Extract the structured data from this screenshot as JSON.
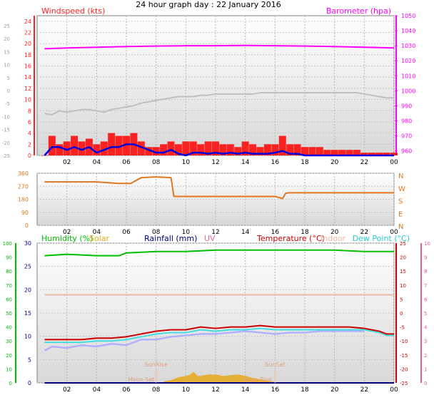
{
  "title": "24 hour graph day : 22 January 2016",
  "colors": {
    "wind": "#ff0000",
    "wind_avg": "#0000dd",
    "gust_trace": "#c0c0c0",
    "baro": "#ff00ff",
    "direction": "#e07820",
    "humidity": "#00c000",
    "solar": "#e6a817",
    "rain": "#000080",
    "uv": "#e06080",
    "temperature": "#cc0000",
    "indoor": "#f0b8a8",
    "dewpoint": "#44dddd",
    "apparent": "#b0b0ff",
    "axis_left": "#ff2020",
    "axis_right": "#ff00ff"
  },
  "chart_data": [
    {
      "type": "line",
      "panel": "wind",
      "title": "",
      "x_ticks": [
        "02",
        "04",
        "06",
        "08",
        "10",
        "12",
        "14",
        "16",
        "18",
        "20",
        "22",
        "00"
      ],
      "x_range_hours": [
        0,
        24
      ],
      "legend": {
        "left": "Windspeed (kts)",
        "right": "Barometer (hpa)"
      },
      "axis_outer_ticks": [
        "25",
        "20",
        "15",
        "10",
        "5",
        "0",
        "-5",
        "-10",
        "-15",
        "-20",
        "-25"
      ],
      "y_left": {
        "label": "Windspeed (kts)",
        "range": [
          0,
          25
        ],
        "ticks": [
          0,
          2,
          4,
          6,
          8,
          10,
          12,
          14,
          16,
          18,
          20,
          22,
          24
        ]
      },
      "y_right": {
        "label": "Barometer (hpa)",
        "range": [
          957,
          1050
        ],
        "ticks": [
          960,
          970,
          980,
          990,
          1000,
          1010,
          1020,
          1030,
          1040,
          1050
        ]
      },
      "series": [
        {
          "name": "Windspeed (kts)",
          "axis": "left",
          "style": "gust",
          "x": [
            0.5,
            1,
            1.5,
            2,
            2.5,
            3,
            3.5,
            4,
            4.5,
            5,
            5.5,
            6,
            6.5,
            7,
            7.5,
            8,
            8.5,
            9,
            9.5,
            10,
            10.5,
            11,
            11.5,
            12,
            12.5,
            13,
            13.5,
            14,
            14.5,
            15,
            15.5,
            16,
            16.5,
            17,
            17.5,
            18,
            18.5,
            19,
            19.5,
            20,
            20.5,
            21,
            21.5,
            22,
            22.5,
            23,
            23.5,
            24
          ],
          "y": [
            0,
            3.5,
            2,
            2.5,
            3.5,
            2.5,
            3,
            2,
            2.5,
            4,
            3.5,
            3.5,
            4,
            2.5,
            1.5,
            1.5,
            2,
            2.5,
            2,
            2.5,
            2.5,
            2,
            2.5,
            2.5,
            2,
            2,
            1.5,
            2.5,
            2,
            1.5,
            2,
            2,
            3.5,
            2,
            2,
            1.5,
            1.5,
            1.5,
            1,
            1,
            1,
            1,
            1,
            0.5,
            0.5,
            0.5,
            0.5,
            0.5
          ]
        },
        {
          "name": "Average speed",
          "axis": "left",
          "style": "line",
          "x": [
            0.5,
            1,
            1.5,
            2,
            2.5,
            3,
            3.5,
            4,
            4.5,
            5,
            5.5,
            6,
            6.5,
            7,
            7.5,
            8,
            8.5,
            9,
            9.5,
            10,
            10.5,
            11,
            11.5,
            12,
            12.5,
            13,
            13.5,
            14,
            14.5,
            15,
            15.5,
            16,
            16.5,
            17,
            17.5,
            18,
            18.5,
            19,
            19.5,
            20,
            20.5,
            21,
            21.5,
            22,
            22.5,
            23,
            23.5,
            24
          ],
          "y": [
            0,
            1.5,
            1.5,
            1,
            1.5,
            1,
            1.5,
            0.5,
            1,
            1.5,
            1.5,
            2,
            2,
            1.5,
            1,
            0.5,
            0.5,
            1,
            0.3,
            0,
            0.5,
            0.5,
            0.3,
            0.5,
            0.3,
            0.5,
            0.3,
            0.5,
            0.3,
            0.3,
            0.3,
            0.5,
            0.8,
            0.3,
            0.3,
            0,
            0,
            0,
            0,
            0,
            0,
            0,
            0,
            0,
            0,
            0,
            0,
            0
          ]
        },
        {
          "name": "Wind trace",
          "axis": "outer",
          "style": "line",
          "x": [
            0.5,
            1,
            1.5,
            2,
            2.5,
            3,
            3.5,
            4,
            4.5,
            5,
            5.5,
            6,
            6.5,
            7,
            7.5,
            8,
            8.5,
            9,
            9.5,
            10,
            10.5,
            11,
            11.5,
            12,
            12.5,
            13,
            13.5,
            14,
            14.5,
            15,
            15.5,
            16,
            16.5,
            17,
            17.5,
            18,
            18.5,
            19,
            19.5,
            20,
            20.5,
            21,
            21.5,
            22,
            22.5,
            23,
            23.5,
            24
          ],
          "y": [
            -8,
            -8.5,
            -7,
            -7.5,
            -7,
            -6.5,
            -6.5,
            -7,
            -7.5,
            -6.5,
            -6,
            -5.5,
            -5,
            -4,
            -3.5,
            -3,
            -2.5,
            -2,
            -1.5,
            -1.5,
            -1.5,
            -1,
            -1,
            -0.5,
            -0.5,
            -0.5,
            -0.5,
            -0.5,
            -0.5,
            0,
            0,
            0,
            0,
            0,
            0,
            0,
            0,
            0,
            0,
            0,
            0,
            0,
            0,
            -0.5,
            -1,
            -1.5,
            -2,
            -2
          ]
        },
        {
          "name": "Barometer (hpa)",
          "axis": "right",
          "style": "line",
          "x": [
            0.5,
            2,
            4,
            6,
            8,
            10,
            12,
            14,
            16,
            18,
            20,
            22,
            24
          ],
          "y": [
            1028.0,
            1028.5,
            1029.0,
            1029.5,
            1029.8,
            1030.0,
            1030.0,
            1030.2,
            1030.0,
            1029.8,
            1029.5,
            1029.0,
            1028.5
          ]
        }
      ]
    },
    {
      "type": "line",
      "panel": "direction",
      "title": "",
      "x_ticks": [
        "02",
        "04",
        "06",
        "08",
        "10",
        "12",
        "14",
        "16",
        "18",
        "20",
        "22",
        "00"
      ],
      "x_range_hours": [
        0,
        24
      ],
      "y_left": {
        "label": "",
        "range": [
          0,
          360
        ],
        "ticks": [
          0,
          90,
          180,
          270,
          360
        ]
      },
      "y_right_compass": [
        "N",
        "W",
        "S",
        "E",
        "N"
      ],
      "series": [
        {
          "name": "Wind direction",
          "axis": "left",
          "style": "line",
          "x": [
            0.5,
            2,
            4,
            5.5,
            6.3,
            7.0,
            8,
            9,
            9.2,
            12,
            16,
            16.5,
            16.7,
            16.9,
            18,
            24
          ],
          "y": [
            300,
            300,
            300,
            290,
            290,
            330,
            335,
            330,
            200,
            200,
            200,
            185,
            220,
            225,
            225,
            225
          ]
        }
      ]
    },
    {
      "type": "line",
      "panel": "thermo",
      "title": "",
      "x_ticks": [
        "02",
        "04",
        "06",
        "08",
        "10",
        "12",
        "14",
        "16",
        "18",
        "20",
        "22",
        "00"
      ],
      "x_range_hours": [
        0,
        24
      ],
      "legend": [
        "Humidity (%)",
        "Solar",
        "Rainfall (mm)",
        "UV",
        "Temperature (°C)",
        "Indoor",
        "Dew Point (°C)"
      ],
      "annotations": [
        "Moon Set",
        "SunRise",
        "SunSet",
        "Moon Rise"
      ],
      "y_humidity": {
        "label": "Humidity (%)",
        "range": [
          0,
          100
        ],
        "ticks": [
          0,
          10,
          20,
          30,
          40,
          50,
          60,
          70,
          80,
          90,
          100
        ]
      },
      "y_rain": {
        "label": "Rainfall (mm)",
        "range": [
          0,
          30
        ],
        "ticks": [
          0,
          5,
          10,
          15,
          20,
          25,
          30
        ]
      },
      "y_temperature": {
        "label": "Temperature (°C)",
        "range": [
          -25,
          25
        ],
        "ticks": [
          25,
          20,
          15,
          10,
          5,
          0,
          -5,
          -10,
          -15,
          -20,
          -25
        ]
      },
      "y_uv": {
        "label": "UV",
        "range": [
          0,
          10
        ],
        "ticks": [
          0,
          1,
          2,
          3,
          4,
          5,
          6,
          7,
          8,
          9,
          10
        ]
      },
      "series": [
        {
          "name": "Humidity (%)",
          "axis": "humidity",
          "style": "line",
          "x": [
            0.5,
            2,
            4,
            5.5,
            6,
            8,
            10,
            12,
            14,
            16,
            18,
            20,
            22,
            24
          ],
          "y": [
            91,
            92,
            91,
            91,
            93,
            94,
            94,
            95,
            95,
            95,
            95,
            95,
            94,
            94
          ]
        },
        {
          "name": "Temperature (°C)",
          "axis": "temperature",
          "style": "line",
          "x": [
            0.5,
            2,
            3,
            4,
            5,
            6,
            7,
            8,
            9,
            10,
            11,
            12,
            13,
            14,
            15,
            16,
            17,
            18,
            19,
            20,
            21,
            22,
            23,
            23.5,
            24
          ],
          "y": [
            -9.5,
            -9.5,
            -9.5,
            -9,
            -9,
            -8.5,
            -7.5,
            -6.5,
            -6,
            -6,
            -5,
            -5.5,
            -5,
            -5,
            -4.5,
            -5,
            -5,
            -5,
            -5,
            -5,
            -5,
            -5.5,
            -6.5,
            -7.5,
            -7.5
          ]
        },
        {
          "name": "Dew Point (°C)",
          "axis": "temperature",
          "style": "line",
          "x": [
            0.5,
            2,
            3,
            4,
            5,
            6,
            7,
            8,
            9,
            10,
            11,
            12,
            13,
            14,
            15,
            16,
            17,
            18,
            19,
            20,
            21,
            22,
            23,
            23.5,
            24
          ],
          "y": [
            -10.5,
            -10.5,
            -10.5,
            -10,
            -10,
            -9.5,
            -8.5,
            -7.5,
            -7,
            -7,
            -6,
            -6.5,
            -6,
            -6,
            -5.5,
            -6,
            -6,
            -6,
            -6,
            -6,
            -6,
            -6,
            -7,
            -8,
            -8
          ]
        },
        {
          "name": "Apparent temperature",
          "axis": "temperature",
          "style": "line",
          "x": [
            0.5,
            1,
            2,
            3,
            4,
            5,
            6,
            7,
            8,
            9,
            10,
            11,
            12,
            13,
            14,
            15,
            16,
            17,
            18,
            19,
            20,
            21,
            22
          ],
          "y": [
            -13.5,
            -12,
            -12.5,
            -11.5,
            -12,
            -11,
            -11.5,
            -9.5,
            -9.5,
            -8.5,
            -8,
            -7.5,
            -7.5,
            -7,
            -6.5,
            -7,
            -7.5,
            -7,
            -7,
            -6.5,
            -6.5,
            -6.5,
            -6.5
          ]
        },
        {
          "name": "Indoor",
          "axis": "temperature",
          "style": "line",
          "x": [
            0.5,
            24
          ],
          "y": [
            6.5,
            6.5
          ]
        },
        {
          "name": "Solar",
          "axis": "uv",
          "style": "area",
          "x": [
            8.5,
            9,
            9.5,
            10,
            10.3,
            10.5,
            10.8,
            11,
            11.5,
            12,
            12.5,
            13,
            13.5,
            14,
            14.5,
            15,
            15.5,
            16
          ],
          "y": [
            0.1,
            0.2,
            0.4,
            0.5,
            0.6,
            0.8,
            0.5,
            0.5,
            0.6,
            0.6,
            0.5,
            0.55,
            0.6,
            0.5,
            0.35,
            0.25,
            0.15,
            0.05
          ]
        },
        {
          "name": "Rainfall (mm)",
          "axis": "rain",
          "style": "line",
          "x": [
            0.5,
            24
          ],
          "y": [
            0,
            0
          ]
        }
      ]
    }
  ]
}
